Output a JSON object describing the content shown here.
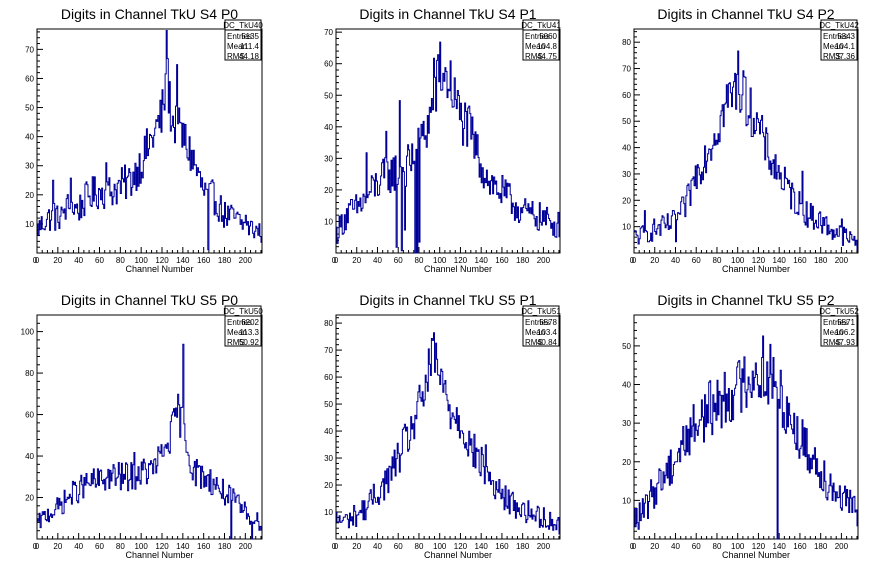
{
  "colors": {
    "histogram_line": "#000099",
    "axis": "#000000",
    "background": "#ffffff"
  },
  "chart_data": [
    {
      "type": "histogram",
      "title": "Digits in Channel TkU S4 P0",
      "xlabel": "Channel Number",
      "ylabel": "",
      "xlim": [
        0,
        216
      ],
      "ylim": [
        0,
        77
      ],
      "xticks": [
        0,
        20,
        40,
        60,
        80,
        100,
        120,
        140,
        160,
        180,
        200
      ],
      "yticks": [
        10,
        20,
        30,
        40,
        50,
        60,
        70
      ],
      "stats": {
        "name": "DC_TkU40",
        "rows": [
          {
            "label": "Entries",
            "value": "5135"
          },
          {
            "label": "Mean",
            "value": "111.4"
          },
          {
            "label": "RMS",
            "value": "44.18"
          }
        ]
      },
      "profile": {
        "start": 8,
        "stop": 14,
        "points": [
          [
            0,
            8
          ],
          [
            10,
            12
          ],
          [
            20,
            12
          ],
          [
            30,
            16
          ],
          [
            40,
            15
          ],
          [
            50,
            20
          ],
          [
            60,
            21
          ],
          [
            70,
            21
          ],
          [
            80,
            23
          ],
          [
            90,
            25
          ],
          [
            100,
            31
          ],
          [
            110,
            39
          ],
          [
            120,
            47
          ],
          [
            125,
            60
          ],
          [
            130,
            45
          ],
          [
            140,
            40
          ],
          [
            150,
            32
          ],
          [
            160,
            21
          ],
          [
            170,
            19
          ],
          [
            180,
            13
          ],
          [
            190,
            12
          ],
          [
            200,
            9
          ],
          [
            210,
            8
          ],
          [
            216,
            7
          ]
        ],
        "spikes": [
          [
            15,
            13
          ],
          [
            16,
            5
          ],
          [
            24,
            1
          ],
          [
            32,
            10
          ],
          [
            66,
            10
          ],
          [
            124,
            26
          ],
          [
            134,
            22
          ],
          [
            164,
            -19
          ],
          [
            200,
            4
          ]
        ]
      }
    },
    {
      "type": "histogram",
      "title": "Digits in Channel TkU S4 P1",
      "xlabel": "Channel Number",
      "ylabel": "",
      "xlim": [
        0,
        216
      ],
      "ylim": [
        0,
        71
      ],
      "xticks": [
        0,
        20,
        40,
        60,
        80,
        100,
        120,
        140,
        160,
        180,
        200
      ],
      "yticks": [
        10,
        20,
        30,
        40,
        50,
        60,
        70
      ],
      "stats": {
        "name": "DC_TkU41",
        "rows": [
          {
            "label": "Entries",
            "value": "5060"
          },
          {
            "label": "Mean",
            "value": "104.8"
          },
          {
            "label": "RMS",
            "value": "44.75"
          }
        ]
      },
      "profile": {
        "start": 8,
        "stop": 14,
        "points": [
          [
            0,
            6
          ],
          [
            10,
            12
          ],
          [
            20,
            14
          ],
          [
            30,
            18
          ],
          [
            40,
            22
          ],
          [
            50,
            25
          ],
          [
            60,
            26
          ],
          [
            70,
            28
          ],
          [
            80,
            33
          ],
          [
            90,
            42
          ],
          [
            100,
            57
          ],
          [
            110,
            54
          ],
          [
            120,
            43
          ],
          [
            130,
            38
          ],
          [
            140,
            28
          ],
          [
            150,
            22
          ],
          [
            160,
            19
          ],
          [
            170,
            16
          ],
          [
            180,
            13
          ],
          [
            190,
            12
          ],
          [
            200,
            11
          ],
          [
            210,
            9
          ],
          [
            216,
            9
          ]
        ],
        "spikes": [
          [
            29,
            14
          ],
          [
            48,
            14
          ],
          [
            58,
            -24
          ],
          [
            61,
            22
          ],
          [
            63,
            -26
          ],
          [
            66,
            -20
          ],
          [
            76,
            -32
          ],
          [
            78,
            -36
          ],
          [
            80,
            -30
          ],
          [
            94,
            13
          ],
          [
            100,
            10
          ]
        ]
      }
    },
    {
      "type": "histogram",
      "title": "Digits in Channel TkU S4 P2",
      "xlabel": "Channel Number",
      "ylabel": "",
      "xlim": [
        0,
        216
      ],
      "ylim": [
        0,
        85
      ],
      "xticks": [
        0,
        20,
        40,
        60,
        80,
        100,
        120,
        140,
        160,
        180,
        200
      ],
      "yticks": [
        10,
        20,
        30,
        40,
        50,
        60,
        70,
        80
      ],
      "stats": {
        "name": "DC_TkU42",
        "rows": [
          {
            "label": "Entries",
            "value": "5343"
          },
          {
            "label": "Mean",
            "value": "104.1"
          },
          {
            "label": "RMS",
            "value": "37.36"
          }
        ]
      },
      "profile": {
        "start": 8,
        "stop": 14,
        "points": [
          [
            0,
            6
          ],
          [
            10,
            7
          ],
          [
            20,
            9
          ],
          [
            30,
            10
          ],
          [
            40,
            12
          ],
          [
            50,
            18
          ],
          [
            60,
            30
          ],
          [
            70,
            38
          ],
          [
            80,
            47
          ],
          [
            90,
            58
          ],
          [
            100,
            63
          ],
          [
            110,
            56
          ],
          [
            120,
            48
          ],
          [
            130,
            37
          ],
          [
            140,
            30
          ],
          [
            150,
            23
          ],
          [
            160,
            18
          ],
          [
            170,
            14
          ],
          [
            180,
            12
          ],
          [
            190,
            9
          ],
          [
            200,
            7
          ],
          [
            210,
            5
          ],
          [
            216,
            4
          ]
        ],
        "spikes": [
          [
            10,
            9
          ],
          [
            40,
            -8
          ],
          [
            100,
            14
          ],
          [
            105,
            10
          ],
          [
            162,
            14
          ],
          [
            200,
            6
          ]
        ]
      }
    },
    {
      "type": "histogram",
      "title": "Digits in Channel TkU S5 P0",
      "xlabel": "Channel Number",
      "ylabel": "",
      "xlim": [
        0,
        216
      ],
      "ylim": [
        0,
        108
      ],
      "xticks": [
        0,
        20,
        40,
        60,
        80,
        100,
        120,
        140,
        160,
        180,
        200
      ],
      "yticks": [
        20,
        40,
        60,
        80,
        100
      ],
      "stats": {
        "name": "DC_TkU50",
        "rows": [
          {
            "label": "Entries",
            "value": "6202"
          },
          {
            "label": "Mean",
            "value": "113.3"
          },
          {
            "label": "RMS",
            "value": "50.92"
          }
        ]
      },
      "profile": {
        "start": 8,
        "stop": 15,
        "points": [
          [
            0,
            7
          ],
          [
            10,
            12
          ],
          [
            20,
            15
          ],
          [
            30,
            20
          ],
          [
            40,
            24
          ],
          [
            50,
            27
          ],
          [
            60,
            28
          ],
          [
            70,
            30
          ],
          [
            80,
            30
          ],
          [
            90,
            30
          ],
          [
            100,
            32
          ],
          [
            110,
            33
          ],
          [
            120,
            40
          ],
          [
            130,
            52
          ],
          [
            135,
            62
          ],
          [
            140,
            55
          ],
          [
            150,
            33
          ],
          [
            160,
            30
          ],
          [
            170,
            27
          ],
          [
            180,
            22
          ],
          [
            190,
            18
          ],
          [
            200,
            13
          ],
          [
            210,
            9
          ],
          [
            216,
            8
          ]
        ],
        "spikes": [
          [
            93,
            11
          ],
          [
            140,
            40
          ],
          [
            186,
            -23
          ],
          [
            206,
            -12
          ]
        ]
      }
    },
    {
      "type": "histogram",
      "title": "Digits in Channel TkU S5 P1",
      "xlabel": "Channel Number",
      "ylabel": "",
      "xlim": [
        0,
        216
      ],
      "ylim": [
        0,
        83
      ],
      "xticks": [
        0,
        20,
        40,
        60,
        80,
        100,
        120,
        140,
        160,
        180,
        200
      ],
      "yticks": [
        10,
        20,
        30,
        40,
        50,
        60,
        70,
        80
      ],
      "stats": {
        "name": "DC_TkU51",
        "rows": [
          {
            "label": "Entries",
            "value": "5578"
          },
          {
            "label": "Mean",
            "value": "103.4"
          },
          {
            "label": "RMS",
            "value": "40.84"
          }
        ]
      },
      "profile": {
        "start": 8,
        "stop": 14,
        "points": [
          [
            0,
            7
          ],
          [
            10,
            7
          ],
          [
            20,
            9
          ],
          [
            30,
            12
          ],
          [
            40,
            17
          ],
          [
            50,
            22
          ],
          [
            60,
            30
          ],
          [
            70,
            38
          ],
          [
            80,
            48
          ],
          [
            90,
            62
          ],
          [
            95,
            68
          ],
          [
            100,
            60
          ],
          [
            110,
            48
          ],
          [
            120,
            44
          ],
          [
            130,
            34
          ],
          [
            140,
            28
          ],
          [
            150,
            21
          ],
          [
            160,
            16
          ],
          [
            170,
            13
          ],
          [
            180,
            11
          ],
          [
            190,
            9
          ],
          [
            200,
            8
          ],
          [
            210,
            6
          ],
          [
            216,
            5
          ]
        ],
        "spikes": [
          [
            94,
            9
          ],
          [
            144,
            10
          ]
        ]
      }
    },
    {
      "type": "histogram",
      "title": "Digits in Channel TkU S5 P2",
      "xlabel": "Channel Number",
      "ylabel": "",
      "xlim": [
        0,
        216
      ],
      "ylim": [
        0,
        58
      ],
      "xticks": [
        0,
        20,
        40,
        60,
        80,
        100,
        120,
        140,
        160,
        180,
        200
      ],
      "yticks": [
        10,
        20,
        30,
        40,
        50
      ],
      "stats": {
        "name": "DC_TkU52",
        "rows": [
          {
            "label": "Entries",
            "value": "5571"
          },
          {
            "label": "Mean",
            "value": "106.2"
          },
          {
            "label": "RMS",
            "value": "47.93"
          }
        ]
      },
      "profile": {
        "start": 3,
        "stop": 5,
        "points": [
          [
            0,
            5
          ],
          [
            10,
            7
          ],
          [
            20,
            13
          ],
          [
            30,
            17
          ],
          [
            40,
            21
          ],
          [
            50,
            26
          ],
          [
            60,
            30
          ],
          [
            70,
            33
          ],
          [
            80,
            35
          ],
          [
            90,
            37
          ],
          [
            100,
            39
          ],
          [
            110,
            42
          ],
          [
            120,
            43
          ],
          [
            130,
            42
          ],
          [
            140,
            38
          ],
          [
            150,
            32
          ],
          [
            160,
            26
          ],
          [
            170,
            22
          ],
          [
            180,
            18
          ],
          [
            190,
            14
          ],
          [
            200,
            11
          ],
          [
            210,
            8
          ],
          [
            216,
            7
          ]
        ],
        "spikes": [
          [
            131,
            9
          ],
          [
            138,
            -40
          ],
          [
            124,
            10
          ]
        ]
      }
    }
  ]
}
